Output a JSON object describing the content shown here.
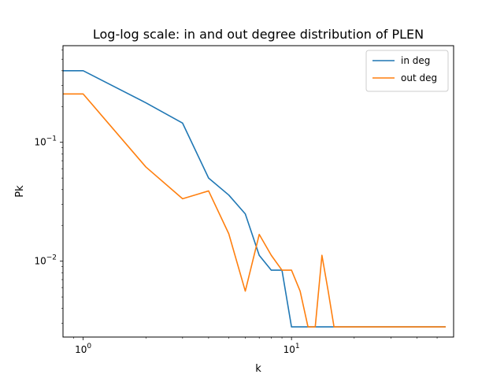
{
  "chart_data": {
    "type": "line",
    "title": "Log-log scale: in and out degree distribution of PLEN",
    "xlabel": "k",
    "ylabel": "Pk",
    "xscale": "log",
    "yscale": "log",
    "xlim": [
      0.8,
      60
    ],
    "ylim": [
      0.0023,
      0.65
    ],
    "xticks": [
      {
        "value": 1,
        "base": "10",
        "exp": "0"
      },
      {
        "value": 10,
        "base": "10",
        "exp": "1"
      }
    ],
    "yticks": [
      {
        "value": 0.01,
        "base": "10",
        "exp": "−2"
      },
      {
        "value": 0.1,
        "base": "10",
        "exp": "−1"
      }
    ],
    "legend_position": "top-right",
    "series": [
      {
        "name": "in deg",
        "color": "#1f77b4",
        "x": [
          0.8,
          1,
          2,
          3,
          4,
          5,
          6,
          7,
          8,
          9,
          10,
          11,
          12,
          13,
          14,
          15,
          16,
          20,
          30,
          40,
          50,
          55
        ],
        "y": [
          0.4,
          0.4,
          0.215,
          0.145,
          0.05,
          0.036,
          0.025,
          0.0112,
          0.0084,
          0.0084,
          0.0028,
          0.0028,
          0.0028,
          0.0028,
          0.0028,
          0.0028,
          0.0028,
          0.0028,
          0.0028,
          0.0028,
          0.0028,
          0.0028
        ]
      },
      {
        "name": "out deg",
        "color": "#ff7f0e",
        "x": [
          0.8,
          1,
          2,
          3,
          4,
          5,
          6,
          7,
          8,
          9,
          10,
          11,
          12,
          13,
          14,
          15,
          16,
          20,
          30,
          40,
          50,
          55
        ],
        "y": [
          0.255,
          0.255,
          0.062,
          0.0335,
          0.039,
          0.017,
          0.0056,
          0.0168,
          0.0112,
          0.0084,
          0.0084,
          0.0056,
          0.0028,
          0.0028,
          0.0112,
          0.0056,
          0.0028,
          0.0028,
          0.0028,
          0.0028,
          0.0028,
          0.0028
        ]
      }
    ]
  }
}
